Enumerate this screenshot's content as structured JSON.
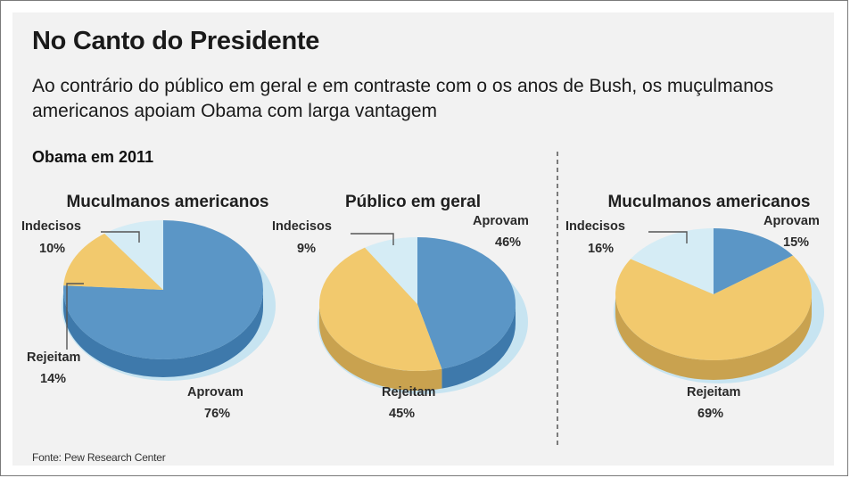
{
  "title": "No Canto do Presidente",
  "subtitle": "Ao contrário do público em geral e em contraste com o os anos de Bush, os muçulmanos americanos apoiam Obama com larga vantagem",
  "section_label": "Obama em 2011",
  "source": "Fonte: Pew Research Center",
  "colors": {
    "aprovam": "#5b96c6",
    "aprovam_side": "#3e79ab",
    "rejeitam": "#f2c96d",
    "rejeitam_side": "#c9a24f",
    "indecisos": "#d5ecf5",
    "indecisos_side": "#a9cfde",
    "shadow": "#c7e4f1"
  },
  "chart_data": [
    {
      "type": "pie",
      "title": "Muculmanos americanos",
      "slices": [
        {
          "label": "Aprovam",
          "value": 76,
          "value_label": "76%",
          "color_key": "aprovam"
        },
        {
          "label": "Rejeitam",
          "value": 14,
          "value_label": "14%",
          "color_key": "rejeitam"
        },
        {
          "label": "Indecisos",
          "value": 10,
          "value_label": "10%",
          "color_key": "indecisos"
        }
      ]
    },
    {
      "type": "pie",
      "title": "Público em geral",
      "slices": [
        {
          "label": "Aprovam",
          "value": 46,
          "value_label": "46%",
          "color_key": "aprovam"
        },
        {
          "label": "Rejeitam",
          "value": 45,
          "value_label": "45%",
          "color_key": "rejeitam"
        },
        {
          "label": "Indecisos",
          "value": 9,
          "value_label": "9%",
          "color_key": "indecisos"
        }
      ]
    },
    {
      "type": "pie",
      "title": "Muculmanos americanos",
      "slices": [
        {
          "label": "Aprovam",
          "value": 15,
          "value_label": "15%",
          "color_key": "aprovam"
        },
        {
          "label": "Rejeitam",
          "value": 69,
          "value_label": "69%",
          "color_key": "rejeitam"
        },
        {
          "label": "Indecisos",
          "value": 16,
          "value_label": "16%",
          "color_key": "indecisos"
        }
      ]
    }
  ]
}
